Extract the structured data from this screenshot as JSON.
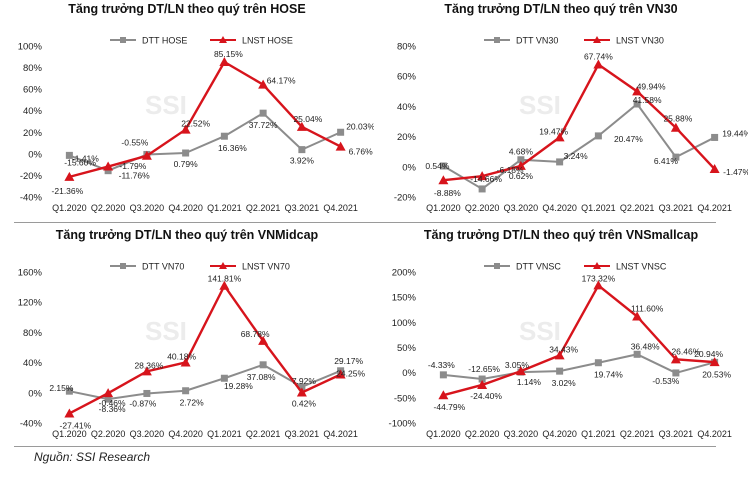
{
  "source": "Nguồn: SSI Research",
  "colors": {
    "dtt": "#8c8c8c",
    "lnst": "#d7141c",
    "watermark": "#ececec",
    "text": "#222222"
  },
  "watermark": "SSI",
  "chart_data": [
    {
      "type": "line",
      "title": "Tăng trưởng DT/LN theo quý trên HOSE",
      "categories": [
        "Q1.2020",
        "Q2.2020",
        "Q3.2020",
        "Q4.2020",
        "Q1.2021",
        "Q2.2021",
        "Q3.2021",
        "Q4.2021"
      ],
      "ylim": [
        -40,
        100
      ],
      "yticks": [
        -40,
        -20,
        0,
        20,
        40,
        60,
        80,
        100
      ],
      "ytick_labels": [
        "-40%",
        "-20%",
        "0%",
        "20%",
        "40%",
        "60%",
        "80%",
        "100%"
      ],
      "legend_placement": "top",
      "series": [
        {
          "name": "DTT HOSE",
          "values": [
            -1.41,
            -15.6,
            -0.55,
            0.79,
            16.36,
            37.72,
            3.92,
            20.03
          ],
          "labels": [
            "-1.41%",
            "-15.60%",
            "-0.55%",
            "0.79%",
            "16.36%",
            "37.72%",
            "3.92%",
            "20.03%"
          ]
        },
        {
          "name": "LNST HOSE",
          "values": [
            -21.36,
            -11.76,
            -1.79,
            22.52,
            85.15,
            64.17,
            25.04,
            6.76
          ],
          "labels": [
            "-21.36%",
            "-11.76%",
            "-1.79%",
            "22.52%",
            "85.15%",
            "64.17%",
            "25.04%",
            "6.76%"
          ]
        }
      ]
    },
    {
      "type": "line",
      "title": "Tăng trưởng DT/LN theo quý trên VN30",
      "categories": [
        "Q1.2020",
        "Q2.2020",
        "Q3.2020",
        "Q4.2020",
        "Q1.2021",
        "Q2.2021",
        "Q3.2021",
        "Q4.2021"
      ],
      "ylim": [
        -20,
        80
      ],
      "yticks": [
        -20,
        0,
        20,
        40,
        60,
        80
      ],
      "ytick_labels": [
        "-20%",
        "0%",
        "20%",
        "40%",
        "60%",
        "80%"
      ],
      "legend_placement": "top",
      "series": [
        {
          "name": "DTT VN30",
          "values": [
            0.54,
            -14.66,
            4.68,
            3.24,
            20.47,
            41.58,
            6.41,
            19.44
          ],
          "labels": [
            "0.54%",
            "-14.66%",
            "4.68%",
            "3.24%",
            "20.47%",
            "41.58%",
            "6.41%",
            "19.44%"
          ]
        },
        {
          "name": "LNST VN30",
          "values": [
            -8.88,
            -6.18,
            0.62,
            19.47,
            67.74,
            49.94,
            25.88,
            -1.47
          ],
          "labels": [
            "-8.88%",
            "-6.18%",
            "0.62%",
            "19.47%",
            "67.74%",
            "49.94%",
            "25.88%",
            "-1.47%"
          ]
        }
      ]
    },
    {
      "type": "line",
      "title": "Tăng trưởng DT/LN theo quý trên VNMidcap",
      "categories": [
        "Q1.2020",
        "Q2.2020",
        "Q3.2020",
        "Q4.2020",
        "Q1.2021",
        "Q2.2021",
        "Q3.2021",
        "Q4.2021"
      ],
      "ylim": [
        -40,
        160
      ],
      "yticks": [
        -40,
        0,
        40,
        80,
        120,
        160
      ],
      "ytick_labels": [
        "-40%",
        "0%",
        "40%",
        "80%",
        "120%",
        "160%"
      ],
      "legend_placement": "top",
      "series": [
        {
          "name": "DTT VN70",
          "values": [
            2.15,
            -8.36,
            -0.87,
            2.72,
            19.28,
            37.08,
            7.92,
            29.17
          ],
          "labels": [
            "2.15%",
            "-8.36%",
            "-0.87%",
            "2.72%",
            "19.28%",
            "37.08%",
            "7.92%",
            "29.17%"
          ]
        },
        {
          "name": "LNST VN70",
          "values": [
            -27.41,
            -0.46,
            28.36,
            40.18,
            141.81,
            68.78,
            0.42,
            24.25
          ],
          "labels": [
            "-27.41%",
            "-0.46%",
            "28.36%",
            "40.18%",
            "141.81%",
            "68.78%",
            "0.42%",
            "24.25%"
          ]
        }
      ]
    },
    {
      "type": "line",
      "title": "Tăng trưởng DT/LN theo quý trên VNSmallcap",
      "categories": [
        "Q1.2020",
        "Q2.2020",
        "Q3.2020",
        "Q4.2020",
        "Q1.2021",
        "Q2.2021",
        "Q3.2021",
        "Q4.2021"
      ],
      "ylim": [
        -100,
        200
      ],
      "yticks": [
        -100,
        -50,
        0,
        50,
        100,
        150,
        200
      ],
      "ytick_labels": [
        "-100%",
        "-50%",
        "0%",
        "50%",
        "100%",
        "150%",
        "200%"
      ],
      "legend_placement": "top",
      "series": [
        {
          "name": "DTT VNSC",
          "values": [
            -4.33,
            -12.65,
            1.14,
            3.02,
            19.74,
            36.48,
            -0.53,
            20.53
          ],
          "labels": [
            "-4.33%",
            "-12.65%",
            "1.14%",
            "3.02%",
            "19.74%",
            "36.48%",
            "-0.53%",
            "20.53%"
          ]
        },
        {
          "name": "LNST VNSC",
          "values": [
            -44.79,
            -24.4,
            3.05,
            34.43,
            173.32,
            111.6,
            26.46,
            20.94
          ],
          "labels": [
            "-44.79%",
            "-24.40%",
            "3.05%",
            "34.43%",
            "173.32%",
            "111.60%",
            "26.46%",
            "20.94%"
          ]
        }
      ]
    }
  ]
}
